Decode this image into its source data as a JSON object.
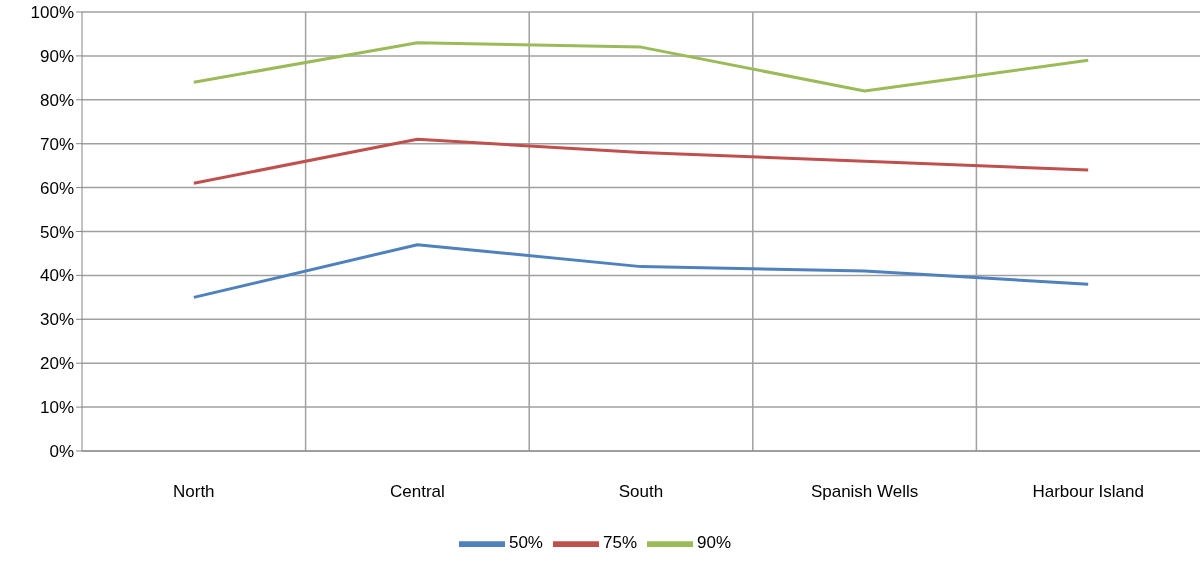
{
  "chart_data": {
    "type": "line",
    "categories": [
      "North",
      "Central",
      "South",
      "Spanish Wells",
      "Harbour Island"
    ],
    "series": [
      {
        "name": "50%",
        "color": "#4f81bd",
        "values": [
          35,
          47,
          42,
          41,
          38
        ]
      },
      {
        "name": "75%",
        "color": "#c0504d",
        "values": [
          61,
          71,
          68,
          66,
          64
        ]
      },
      {
        "name": "90%",
        "color": "#9bbb59",
        "values": [
          84,
          93,
          92,
          82,
          89
        ]
      }
    ],
    "ylim": [
      0,
      100
    ],
    "yticks": [
      {
        "value": 0,
        "label": "0%"
      },
      {
        "value": 10,
        "label": "10%"
      },
      {
        "value": 20,
        "label": "20%"
      },
      {
        "value": 30,
        "label": "30%"
      },
      {
        "value": 40,
        "label": "40%"
      },
      {
        "value": 50,
        "label": "50%"
      },
      {
        "value": 60,
        "label": "60%"
      },
      {
        "value": 70,
        "label": "70%"
      },
      {
        "value": 80,
        "label": "80%"
      },
      {
        "value": 90,
        "label": "90%"
      },
      {
        "value": 100,
        "label": "100%"
      }
    ],
    "grid": true,
    "legend": "bottom",
    "marker": "none",
    "line_style": "solid"
  }
}
